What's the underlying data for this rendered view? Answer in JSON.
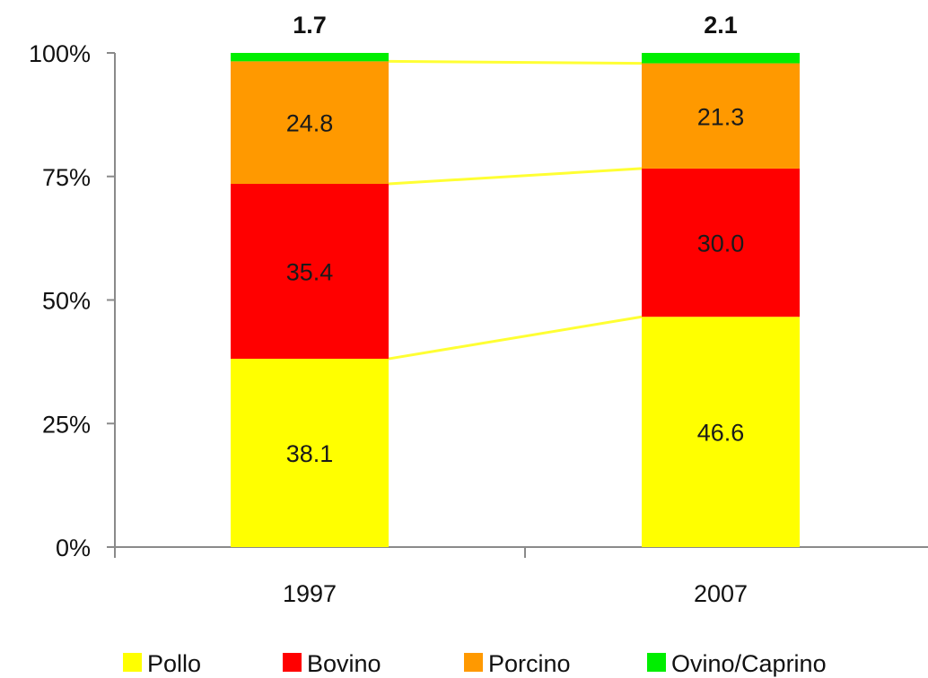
{
  "chart_data": {
    "type": "bar",
    "stacked": true,
    "percent_stacked": true,
    "categories": [
      "1997",
      "2007"
    ],
    "y_ticks": [
      "0%",
      "25%",
      "50%",
      "75%",
      "100%"
    ],
    "ylim": [
      0,
      100
    ],
    "series": [
      {
        "name": "Pollo",
        "color": "#ffff00",
        "values": [
          38.1,
          46.6
        ]
      },
      {
        "name": "Bovino",
        "color": "#ff0000",
        "values": [
          35.4,
          30.0
        ]
      },
      {
        "name": "Porcino",
        "color": "#ff9900",
        "values": [
          24.8,
          21.3
        ]
      },
      {
        "name": "Ovino/Caprino",
        "color": "#00ee00",
        "values": [
          1.7,
          2.1
        ]
      }
    ],
    "data_labels": [
      [
        "38.1",
        "46.6"
      ],
      [
        "35.4",
        "30.0"
      ],
      [
        "24.8",
        "21.3"
      ],
      [
        "1.7",
        "2.1"
      ]
    ],
    "connector_color": "#ffff33",
    "legend_position": "bottom",
    "grid": false
  }
}
